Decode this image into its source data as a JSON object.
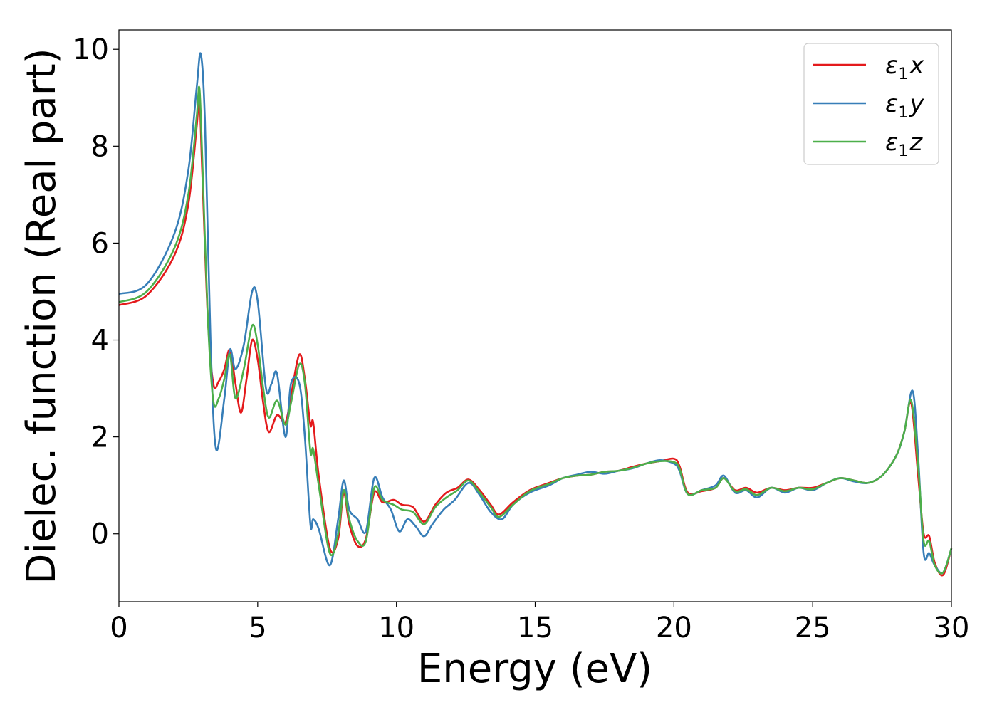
{
  "chart_data": {
    "type": "line",
    "title": "",
    "xlabel": "Energy (eV)",
    "ylabel": "Dielec. function (Real part)",
    "xlim": [
      0,
      30
    ],
    "ylim": [
      -1.4,
      10.4
    ],
    "xticks": [
      0,
      5,
      10,
      15,
      20,
      25,
      30
    ],
    "xtick_labels": [
      "0",
      "5",
      "10",
      "15",
      "20",
      "25",
      "30"
    ],
    "yticks": [
      0,
      2,
      4,
      6,
      8,
      10
    ],
    "ytick_labels": [
      "0",
      "2",
      "4",
      "6",
      "8",
      "10"
    ],
    "grid": false,
    "legend_position": "top-right",
    "series": [
      {
        "name": "ε1x",
        "legend": {
          "symbol": "ε",
          "sub": "1",
          "var": "x"
        },
        "color": "#e41a1c",
        "x": [
          0,
          1,
          2,
          2.5,
          2.8,
          2.9,
          3.0,
          3.2,
          3.4,
          3.6,
          3.8,
          4.0,
          4.2,
          4.4,
          4.6,
          4.8,
          5.0,
          5.2,
          5.4,
          5.7,
          6.0,
          6.2,
          6.5,
          6.7,
          6.9,
          7.0,
          7.2,
          7.6,
          7.9,
          8.1,
          8.3,
          8.6,
          8.9,
          9.2,
          9.5,
          9.9,
          10.2,
          10.6,
          11.0,
          11.4,
          11.8,
          12.2,
          12.6,
          13.0,
          13.4,
          13.7,
          14.2,
          14.8,
          15.5,
          16.0,
          16.5,
          17.0,
          17.5,
          18.0,
          18.5,
          19.0,
          19.5,
          20.0,
          20.2,
          20.5,
          21.0,
          21.5,
          21.8,
          22.2,
          22.6,
          23.0,
          23.5,
          24.0,
          24.5,
          25.0,
          25.5,
          26.0,
          26.5,
          27.0,
          27.5,
          28.0,
          28.3,
          28.55,
          28.8,
          29.0,
          29.2,
          29.4,
          29.7,
          30.0
        ],
        "y": [
          4.72,
          4.92,
          5.75,
          6.8,
          8.4,
          9.0,
          7.5,
          4.5,
          3.1,
          3.15,
          3.4,
          3.8,
          3.1,
          2.5,
          3.2,
          4.0,
          3.6,
          2.7,
          2.1,
          2.45,
          2.3,
          2.85,
          3.7,
          3.2,
          2.25,
          2.3,
          1.2,
          -0.3,
          -0.1,
          0.85,
          0.2,
          -0.25,
          -0.1,
          0.85,
          0.65,
          0.7,
          0.6,
          0.55,
          0.25,
          0.6,
          0.85,
          0.95,
          1.12,
          0.9,
          0.6,
          0.4,
          0.65,
          0.9,
          1.05,
          1.15,
          1.2,
          1.22,
          1.28,
          1.3,
          1.38,
          1.45,
          1.5,
          1.55,
          1.4,
          0.85,
          0.88,
          0.95,
          1.15,
          0.9,
          0.95,
          0.85,
          0.95,
          0.9,
          0.95,
          0.95,
          1.05,
          1.15,
          1.1,
          1.05,
          1.2,
          1.6,
          2.1,
          2.7,
          1.2,
          0.0,
          -0.05,
          -0.6,
          -0.85,
          -0.3
        ]
      },
      {
        "name": "ε1y",
        "legend": {
          "symbol": "ε",
          "sub": "1",
          "var": "y"
        },
        "color": "#377eb8",
        "x": [
          0,
          1,
          2,
          2.5,
          2.8,
          2.95,
          3.1,
          3.3,
          3.5,
          3.8,
          4.0,
          4.2,
          4.5,
          4.8,
          5.0,
          5.3,
          5.5,
          5.7,
          6.0,
          6.2,
          6.5,
          6.7,
          6.9,
          7.0,
          7.2,
          7.6,
          7.9,
          8.1,
          8.3,
          8.6,
          8.9,
          9.2,
          9.5,
          9.8,
          10.1,
          10.4,
          10.7,
          11.0,
          11.3,
          11.7,
          12.1,
          12.6,
          13.0,
          13.4,
          13.8,
          14.2,
          14.8,
          15.5,
          16.0,
          16.5,
          17.0,
          17.5,
          18.0,
          18.5,
          19.0,
          19.5,
          20.0,
          20.2,
          20.5,
          21.0,
          21.5,
          21.8,
          22.2,
          22.6,
          23.0,
          23.5,
          24.0,
          24.5,
          25.0,
          25.5,
          26.0,
          26.5,
          27.0,
          27.5,
          28.0,
          28.3,
          28.6,
          28.8,
          29.0,
          29.2,
          29.4,
          29.7,
          30.0
        ],
        "y": [
          4.95,
          5.15,
          6.2,
          7.5,
          9.2,
          9.9,
          8.5,
          4.0,
          1.75,
          2.8,
          3.8,
          3.4,
          3.9,
          5.0,
          4.8,
          3.0,
          3.1,
          3.3,
          2.0,
          3.1,
          3.1,
          2.0,
          0.2,
          0.3,
          0.1,
          -0.65,
          0.3,
          1.1,
          0.5,
          0.3,
          0.05,
          1.15,
          0.75,
          0.5,
          0.05,
          0.3,
          0.15,
          -0.05,
          0.2,
          0.5,
          0.7,
          1.05,
          0.8,
          0.45,
          0.3,
          0.6,
          0.85,
          1.0,
          1.15,
          1.22,
          1.28,
          1.24,
          1.3,
          1.35,
          1.45,
          1.52,
          1.45,
          1.3,
          0.82,
          0.9,
          1.0,
          1.2,
          0.85,
          0.9,
          0.75,
          0.95,
          0.85,
          0.95,
          0.9,
          1.05,
          1.15,
          1.08,
          1.05,
          1.2,
          1.6,
          2.1,
          2.95,
          1.6,
          -0.4,
          -0.4,
          -0.65,
          -0.8,
          -0.3
        ]
      },
      {
        "name": "ε1z",
        "legend": {
          "symbol": "ε",
          "sub": "1",
          "var": "z"
        },
        "color": "#4daf4a",
        "x": [
          0,
          1,
          2,
          2.5,
          2.8,
          2.9,
          3.0,
          3.2,
          3.4,
          3.6,
          3.8,
          4.0,
          4.2,
          4.5,
          4.8,
          5.0,
          5.2,
          5.4,
          5.7,
          6.0,
          6.2,
          6.5,
          6.7,
          6.9,
          7.0,
          7.2,
          7.6,
          7.9,
          8.1,
          8.3,
          8.6,
          8.9,
          9.2,
          9.5,
          9.9,
          10.2,
          10.6,
          11.0,
          11.4,
          11.8,
          12.2,
          12.6,
          13.0,
          13.4,
          13.7,
          14.2,
          14.8,
          15.5,
          16.0,
          16.5,
          17.0,
          17.5,
          18.0,
          18.5,
          19.0,
          19.5,
          20.0,
          20.2,
          20.5,
          21.0,
          21.5,
          21.8,
          22.2,
          22.6,
          23.0,
          23.5,
          24.0,
          24.5,
          25.0,
          25.5,
          26.0,
          26.5,
          27.0,
          27.5,
          28.0,
          28.3,
          28.55,
          28.8,
          29.0,
          29.2,
          29.4,
          29.7,
          30.0
        ],
        "y": [
          4.78,
          5.0,
          5.9,
          7.0,
          8.6,
          9.2,
          7.8,
          4.5,
          2.75,
          2.8,
          3.2,
          3.7,
          2.8,
          3.4,
          4.3,
          3.9,
          3.0,
          2.4,
          2.75,
          2.25,
          2.7,
          3.5,
          3.1,
          1.7,
          1.75,
          1.0,
          -0.4,
          0.0,
          0.9,
          0.3,
          -0.15,
          -0.15,
          0.95,
          0.7,
          0.6,
          0.5,
          0.45,
          0.2,
          0.55,
          0.75,
          0.9,
          1.1,
          0.85,
          0.55,
          0.35,
          0.6,
          0.88,
          1.03,
          1.15,
          1.2,
          1.22,
          1.28,
          1.3,
          1.36,
          1.45,
          1.5,
          1.48,
          1.35,
          0.82,
          0.9,
          0.95,
          1.15,
          0.88,
          0.92,
          0.8,
          0.95,
          0.88,
          0.95,
          0.92,
          1.05,
          1.15,
          1.1,
          1.05,
          1.2,
          1.6,
          2.1,
          2.75,
          1.4,
          -0.15,
          -0.15,
          -0.65,
          -0.8,
          -0.3
        ]
      }
    ]
  }
}
